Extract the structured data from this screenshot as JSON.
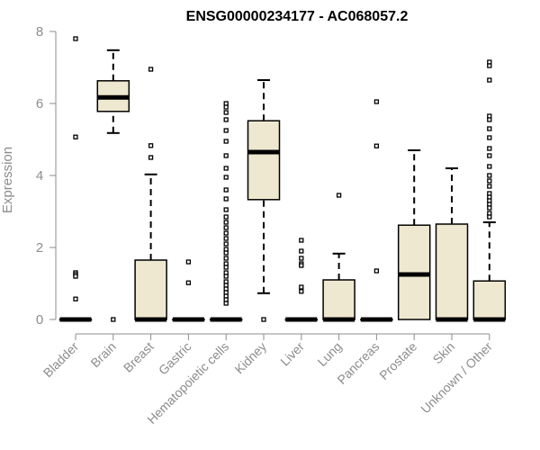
{
  "chart_data": {
    "type": "box",
    "title": "ENSG00000234177 - AC068057.2",
    "xlabel": "",
    "ylabel": "Expression",
    "ylim": [
      0,
      8
    ],
    "yticks": [
      0,
      2,
      4,
      6,
      8
    ],
    "colors": {
      "box_fill": "#efe8d0",
      "stroke": "#000000",
      "axis": "#8c8c8c"
    },
    "categories": [
      "Bladder",
      "Brain",
      "Breast",
      "Gastric",
      "Hematopoietic cells",
      "Kidney",
      "Liver",
      "Lung",
      "Pancreas",
      "Prostate",
      "Skin",
      "Unknown / Other"
    ],
    "boxes": [
      {
        "category": "Bladder",
        "min": 0,
        "q1": 0,
        "median": 0,
        "q3": 0,
        "max": 0,
        "outliers": [
          7.8,
          5.07,
          1.3,
          1.25,
          1.2,
          0.57
        ]
      },
      {
        "category": "Brain",
        "min": 5.18,
        "q1": 5.78,
        "median": 6.17,
        "q3": 6.63,
        "max": 7.48,
        "outliers": [
          0
        ]
      },
      {
        "category": "Breast",
        "min": 0,
        "q1": 0,
        "median": 0,
        "q3": 1.65,
        "max": 4.03,
        "outliers": [
          6.95,
          4.83,
          4.5
        ]
      },
      {
        "category": "Gastric",
        "min": 0,
        "q1": 0,
        "median": 0,
        "q3": 0,
        "max": 0,
        "outliers": [
          1.6,
          1.02
        ]
      },
      {
        "category": "Hematopoietic cells",
        "min": 0,
        "q1": 0,
        "median": 0,
        "q3": 0,
        "max": 0,
        "outliers": [
          6.0,
          5.9,
          5.75,
          5.55,
          5.25,
          4.95,
          4.55,
          4.2,
          3.95,
          3.6,
          3.35,
          3.05,
          2.85,
          2.7,
          2.55,
          2.4,
          2.25,
          2.1,
          1.95,
          1.85,
          1.7,
          1.55,
          1.45,
          1.3,
          1.2,
          1.05,
          0.95,
          0.85,
          0.75,
          0.65,
          0.55,
          0.45
        ]
      },
      {
        "category": "Kidney",
        "min": 0.73,
        "q1": 3.33,
        "median": 4.65,
        "q3": 5.52,
        "max": 6.65,
        "outliers": [
          0
        ]
      },
      {
        "category": "Liver",
        "min": 0,
        "q1": 0,
        "median": 0,
        "q3": 0,
        "max": 0,
        "outliers": [
          2.2,
          1.9,
          1.7,
          1.55,
          1.5,
          0.9,
          0.78
        ]
      },
      {
        "category": "Lung",
        "min": 0,
        "q1": 0,
        "median": 0,
        "q3": 1.1,
        "max": 1.83,
        "outliers": [
          3.45
        ]
      },
      {
        "category": "Pancreas",
        "min": 0,
        "q1": 0,
        "median": 0,
        "q3": 0,
        "max": 0,
        "outliers": [
          6.05,
          4.82,
          1.35
        ]
      },
      {
        "category": "Prostate",
        "min": 0,
        "q1": 0,
        "median": 1.25,
        "q3": 2.62,
        "max": 4.7,
        "outliers": []
      },
      {
        "category": "Skin",
        "min": 0,
        "q1": 0,
        "median": 0,
        "q3": 2.65,
        "max": 4.2,
        "outliers": []
      },
      {
        "category": "Unknown / Other",
        "min": 0,
        "q1": 0,
        "median": 0,
        "q3": 1.07,
        "max": 2.7,
        "outliers": [
          7.15,
          7.05,
          6.65,
          5.65,
          5.55,
          5.3,
          5.05,
          4.75,
          4.55,
          4.25,
          4.0,
          3.85,
          3.7,
          3.5,
          3.4,
          3.3,
          3.2,
          3.1,
          2.95,
          2.85
        ]
      }
    ]
  }
}
